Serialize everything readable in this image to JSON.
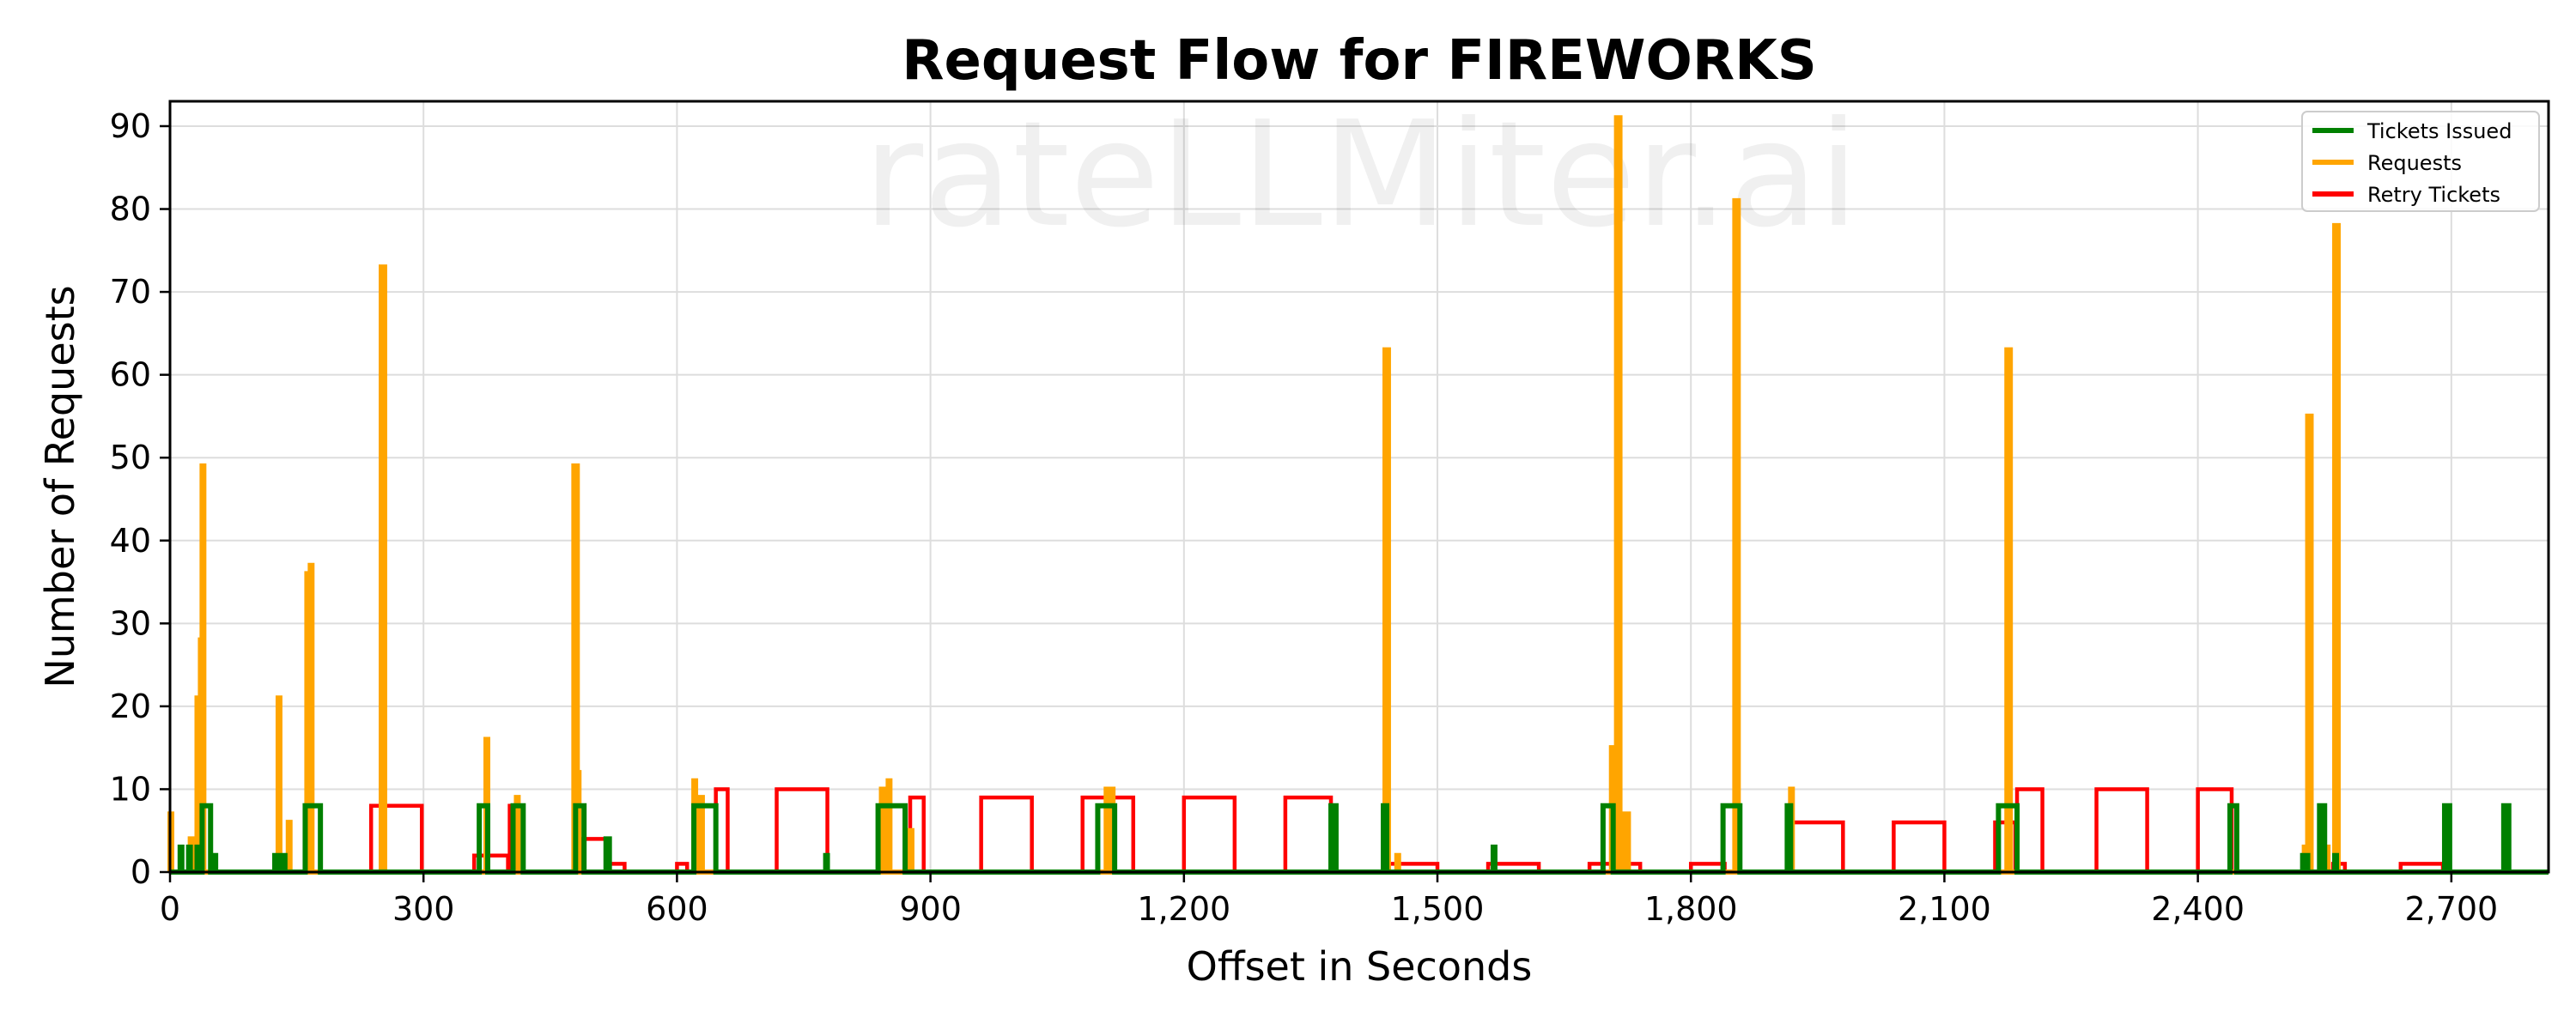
{
  "chart_data": {
    "type": "line",
    "title": "Request Flow for FIREWORKS",
    "xlabel": "Offset in Seconds",
    "ylabel": "Number of Requests",
    "watermark": "rateLLMiter.ai",
    "xlim": [
      0,
      2815
    ],
    "ylim": [
      0,
      93
    ],
    "x_ticks": [
      0,
      300,
      600,
      900,
      1200,
      1500,
      1800,
      2100,
      2400,
      2700
    ],
    "x_tick_labels": [
      "0",
      "300",
      "600",
      "900",
      "1,200",
      "1,500",
      "1,800",
      "2,100",
      "2,400",
      "2,700"
    ],
    "y_ticks": [
      0,
      10,
      20,
      30,
      40,
      50,
      60,
      70,
      80,
      90
    ],
    "y_tick_labels": [
      "0",
      "10",
      "20",
      "30",
      "40",
      "50",
      "60",
      "70",
      "80",
      "90"
    ],
    "grid": true,
    "legend_position": "top-right",
    "series": [
      {
        "name": "Tickets Issued",
        "color": "#008000",
        "baseline": 0,
        "pulses": [
          [
            12,
            14,
            3
          ],
          [
            22,
            24,
            3
          ],
          [
            32,
            34,
            3
          ],
          [
            38,
            48,
            8
          ],
          [
            52,
            54,
            2
          ],
          [
            124,
            130,
            2
          ],
          [
            134,
            136,
            2
          ],
          [
            160,
            178,
            8
          ],
          [
            366,
            376,
            8
          ],
          [
            406,
            418,
            8
          ],
          [
            480,
            490,
            8
          ],
          [
            516,
            520,
            4
          ],
          [
            620,
            646,
            8
          ],
          [
            776,
            778,
            2
          ],
          [
            838,
            870,
            8
          ],
          [
            1098,
            1118,
            8
          ],
          [
            1374,
            1380,
            8
          ],
          [
            1436,
            1440,
            8
          ],
          [
            1566,
            1568,
            3
          ],
          [
            1696,
            1708,
            8
          ],
          [
            1838,
            1858,
            8
          ],
          [
            1914,
            1918,
            8
          ],
          [
            2164,
            2186,
            8
          ],
          [
            2438,
            2446,
            8
          ],
          [
            2524,
            2530,
            2
          ],
          [
            2544,
            2550,
            8
          ],
          [
            2562,
            2564,
            2
          ],
          [
            2692,
            2698,
            8
          ],
          [
            2762,
            2768,
            8
          ]
        ]
      },
      {
        "name": "Requests",
        "color": "#FFA500",
        "baseline": 0,
        "pulses": [
          [
            0,
            2,
            7
          ],
          [
            24,
            26,
            4
          ],
          [
            32,
            34,
            21
          ],
          [
            36,
            38,
            28
          ],
          [
            38,
            40,
            49
          ],
          [
            128,
            130,
            21
          ],
          [
            140,
            142,
            6
          ],
          [
            162,
            164,
            36
          ],
          [
            166,
            168,
            37
          ],
          [
            250,
            254,
            73
          ],
          [
            374,
            376,
            16
          ],
          [
            410,
            412,
            9
          ],
          [
            478,
            482,
            49
          ],
          [
            482,
            484,
            12
          ],
          [
            620,
            622,
            11
          ],
          [
            628,
            630,
            9
          ],
          [
            842,
            844,
            10
          ],
          [
            850,
            852,
            11
          ],
          [
            876,
            878,
            5
          ],
          [
            1108,
            1110,
            10
          ],
          [
            1114,
            1116,
            10
          ],
          [
            1438,
            1442,
            63
          ],
          [
            1452,
            1454,
            2
          ],
          [
            1706,
            1708,
            15
          ],
          [
            1712,
            1716,
            91
          ],
          [
            1718,
            1720,
            5
          ],
          [
            1722,
            1726,
            7
          ],
          [
            1852,
            1856,
            81
          ],
          [
            1918,
            1920,
            10
          ],
          [
            2174,
            2178,
            63
          ],
          [
            2526,
            2528,
            3
          ],
          [
            2530,
            2534,
            55
          ],
          [
            2552,
            2554,
            3
          ],
          [
            2562,
            2566,
            78
          ]
        ]
      },
      {
        "name": "Retry Tickets",
        "color": "#FF0000",
        "baseline": 0,
        "pulses": [
          [
            238,
            298,
            8
          ],
          [
            360,
            400,
            2
          ],
          [
            402,
            406,
            8
          ],
          [
            486,
            520,
            4
          ],
          [
            520,
            538,
            1
          ],
          [
            600,
            612,
            1
          ],
          [
            646,
            660,
            10
          ],
          [
            718,
            778,
            10
          ],
          [
            876,
            892,
            9
          ],
          [
            960,
            1020,
            9
          ],
          [
            1080,
            1140,
            9
          ],
          [
            1200,
            1260,
            9
          ],
          [
            1320,
            1374,
            9
          ],
          [
            1440,
            1500,
            1
          ],
          [
            1560,
            1620,
            1
          ],
          [
            1680,
            1740,
            1
          ],
          [
            1800,
            1840,
            1
          ],
          [
            1920,
            1980,
            6
          ],
          [
            2040,
            2100,
            6
          ],
          [
            2160,
            2184,
            6
          ],
          [
            2186,
            2216,
            10
          ],
          [
            2280,
            2340,
            10
          ],
          [
            2400,
            2440,
            10
          ],
          [
            2560,
            2574,
            1
          ],
          [
            2640,
            2690,
            1
          ]
        ]
      }
    ]
  }
}
